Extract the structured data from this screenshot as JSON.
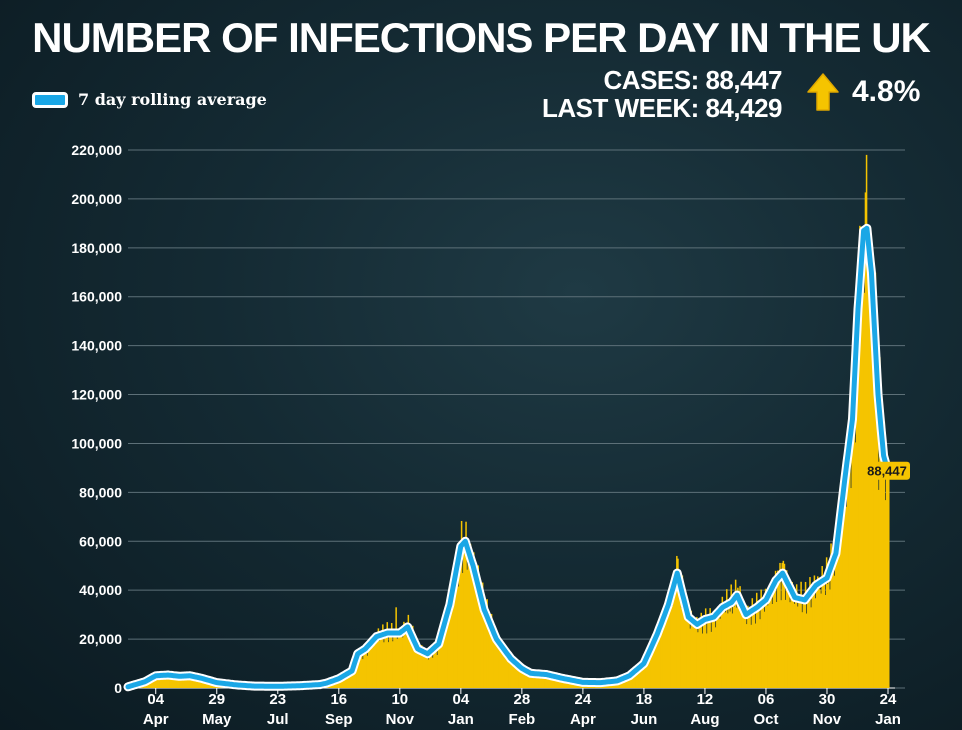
{
  "title": "NUMBER OF INFECTIONS PER DAY IN THE UK",
  "stats": {
    "cases_label": "CASES: 88,447",
    "last_week_label": "LAST WEEK: 84,429",
    "change": "4.8%",
    "change_direction": "up",
    "arrow_icon": "arrow-up-icon"
  },
  "colors": {
    "daily_bars": "#f5c400",
    "rolling_line": "#1aa7e6",
    "annotation_bg": "#f5c400"
  },
  "chart_data": {
    "type": "bar",
    "title": "NUMBER OF INFECTIONS PER DAY IN THE UK",
    "xlabel": "",
    "ylabel": "",
    "ylim": [
      0,
      230000
    ],
    "grid": true,
    "legend": {
      "placement": "top-left",
      "entries": [
        "7 day rolling average"
      ]
    },
    "y_ticks": [
      0,
      20000,
      40000,
      60000,
      80000,
      100000,
      120000,
      140000,
      160000,
      180000,
      200000,
      220000
    ],
    "y_tick_labels": [
      "0",
      "20,000",
      "40,000",
      "60,000",
      "80,000",
      "100,000",
      "120,000",
      "140,000",
      "160,000",
      "180,000",
      "200,000",
      "220,000"
    ],
    "x_ticks": [
      {
        "day": "04",
        "month": "Apr",
        "date": "2020-04-04"
      },
      {
        "day": "29",
        "month": "May",
        "date": "2020-05-29"
      },
      {
        "day": "23",
        "month": "Jul",
        "date": "2020-07-23"
      },
      {
        "day": "16",
        "month": "Sep",
        "date": "2020-09-16"
      },
      {
        "day": "10",
        "month": "Nov",
        "date": "2020-11-10"
      },
      {
        "day": "04",
        "month": "Jan",
        "date": "2021-01-04"
      },
      {
        "day": "28",
        "month": "Feb",
        "date": "2021-02-28"
      },
      {
        "day": "24",
        "month": "Apr",
        "date": "2021-04-24"
      },
      {
        "day": "18",
        "month": "Jun",
        "date": "2021-06-18"
      },
      {
        "day": "12",
        "month": "Aug",
        "date": "2021-08-12"
      },
      {
        "day": "06",
        "month": "Oct",
        "date": "2021-10-06"
      },
      {
        "day": "30",
        "month": "Nov",
        "date": "2021-11-30"
      },
      {
        "day": "24",
        "month": "Jan",
        "date": "2022-01-24"
      }
    ],
    "series": [
      {
        "name": "7 day rolling average",
        "type": "line",
        "points": [
          [
            "2020-03-10",
            500
          ],
          [
            "2020-03-25",
            2500
          ],
          [
            "2020-04-04",
            5000
          ],
          [
            "2020-04-15",
            5300
          ],
          [
            "2020-04-25",
            4800
          ],
          [
            "2020-05-05",
            5000
          ],
          [
            "2020-05-15",
            4000
          ],
          [
            "2020-05-29",
            2200
          ],
          [
            "2020-06-15",
            1300
          ],
          [
            "2020-07-01",
            800
          ],
          [
            "2020-07-23",
            700
          ],
          [
            "2020-08-10",
            900
          ],
          [
            "2020-08-30",
            1400
          ],
          [
            "2020-09-05",
            2000
          ],
          [
            "2020-09-16",
            3800
          ],
          [
            "2020-09-28",
            7000
          ],
          [
            "2020-10-03",
            14000
          ],
          [
            "2020-10-10",
            16000
          ],
          [
            "2020-10-20",
            21000
          ],
          [
            "2020-10-30",
            22500
          ],
          [
            "2020-11-10",
            22500
          ],
          [
            "2020-11-17",
            25000
          ],
          [
            "2020-11-26",
            16000
          ],
          [
            "2020-12-05",
            14000
          ],
          [
            "2020-12-15",
            18000
          ],
          [
            "2020-12-25",
            34000
          ],
          [
            "2021-01-04",
            58000
          ],
          [
            "2021-01-08",
            60000
          ],
          [
            "2021-01-15",
            50000
          ],
          [
            "2021-01-25",
            32000
          ],
          [
            "2021-02-05",
            20000
          ],
          [
            "2021-02-18",
            12000
          ],
          [
            "2021-02-28",
            8000
          ],
          [
            "2021-03-08",
            6000
          ],
          [
            "2021-03-22",
            5500
          ],
          [
            "2021-04-05",
            4000
          ],
          [
            "2021-04-24",
            2300
          ],
          [
            "2021-05-10",
            2200
          ],
          [
            "2021-05-25",
            2900
          ],
          [
            "2021-06-05",
            5000
          ],
          [
            "2021-06-18",
            10000
          ],
          [
            "2021-06-30",
            22000
          ],
          [
            "2021-07-10",
            34000
          ],
          [
            "2021-07-18",
            47000
          ],
          [
            "2021-07-28",
            29000
          ],
          [
            "2021-08-05",
            26000
          ],
          [
            "2021-08-12",
            28000
          ],
          [
            "2021-08-20",
            29000
          ],
          [
            "2021-08-28",
            33000
          ],
          [
            "2021-09-05",
            35000
          ],
          [
            "2021-09-10",
            38000
          ],
          [
            "2021-09-18",
            30000
          ],
          [
            "2021-09-28",
            33000
          ],
          [
            "2021-10-06",
            36000
          ],
          [
            "2021-10-15",
            44000
          ],
          [
            "2021-10-21",
            47000
          ],
          [
            "2021-11-01",
            37000
          ],
          [
            "2021-11-10",
            36000
          ],
          [
            "2021-11-20",
            42000
          ],
          [
            "2021-11-30",
            45000
          ],
          [
            "2021-12-08",
            55000
          ],
          [
            "2021-12-16",
            85000
          ],
          [
            "2021-12-23",
            110000
          ],
          [
            "2021-12-28",
            155000
          ],
          [
            "2022-01-02",
            187000
          ],
          [
            "2022-01-05",
            188000
          ],
          [
            "2022-01-09",
            170000
          ],
          [
            "2022-01-15",
            120000
          ],
          [
            "2022-01-20",
            95000
          ],
          [
            "2022-01-24",
            88447
          ]
        ]
      },
      {
        "name": "Daily cases",
        "type": "bar",
        "points": [
          [
            "2020-10-01",
            9000
          ],
          [
            "2020-10-15",
            19000
          ],
          [
            "2020-10-25",
            26000
          ],
          [
            "2020-11-06",
            33000
          ],
          [
            "2020-12-30",
            53000
          ],
          [
            "2021-01-08",
            68000
          ],
          [
            "2021-07-17",
            54000
          ],
          [
            "2021-09-10",
            41000
          ],
          [
            "2021-10-21",
            52000
          ],
          [
            "2021-12-10",
            60000
          ],
          [
            "2021-12-29",
            189000
          ],
          [
            "2022-01-04",
            218000
          ],
          [
            "2022-01-08",
            146000
          ],
          [
            "2022-01-15",
            81000
          ],
          [
            "2022-01-24",
            88447
          ]
        ]
      }
    ],
    "annotations": [
      {
        "label": "88,447",
        "date": "2022-01-24",
        "value": 88447
      }
    ]
  }
}
